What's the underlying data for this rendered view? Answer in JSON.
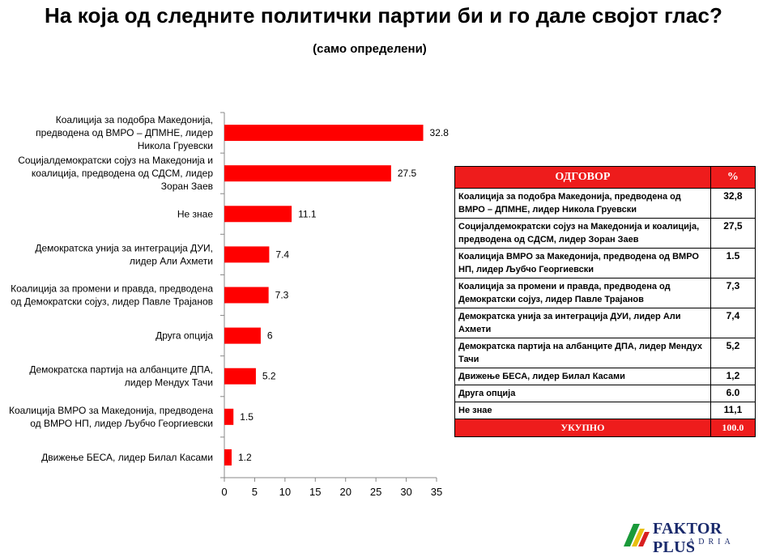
{
  "title": "На која од следните политички партии би и го дале својот глас?",
  "subtitle": "(само определени)",
  "chart_data": {
    "type": "bar",
    "orientation": "horizontal",
    "title": "",
    "xlabel": "",
    "ylabel": "",
    "xlim": [
      0,
      35
    ],
    "xticks": [
      "0",
      "5",
      "10",
      "15",
      "20",
      "25",
      "30",
      "35"
    ],
    "bar_color": "#ff0000",
    "categories": [
      [
        "Коалиција за подобра Македонија,",
        "предводена од ВМРО – ДПМНЕ, лидер",
        "Никола Груевски"
      ],
      [
        "Социјалдемократски сојуз на Македонија и",
        "коалиција, предводена од СДСМ, лидер",
        "Зоран Заев"
      ],
      [
        "Не знае"
      ],
      [
        "Демократска унија за интеграција ДУИ,",
        "лидер Али Ахмети"
      ],
      [
        "Коалиција за промени и правда, предводена",
        "од Демократски сојуз, лидер Павле Трајанов"
      ],
      [
        "Друга опција"
      ],
      [
        "Демократска партија на албанците ДПА,",
        "лидер Мендух Тачи"
      ],
      [
        "Коалиција ВМРО за Македонија, предводена",
        "од ВМРО НП, лидер Љубчо Георгиевски"
      ],
      [
        "Движење БЕСА, лидер Билал Касами"
      ]
    ],
    "values": [
      32.8,
      27.5,
      11.1,
      7.4,
      7.3,
      6,
      5.2,
      1.5,
      1.2
    ],
    "value_labels": [
      "32.8",
      "27.5",
      "11.1",
      "7.4",
      "7.3",
      "6",
      "5.2",
      "1.5",
      "1.2"
    ]
  },
  "table": {
    "headers": [
      "ОДГОВОР",
      "%"
    ],
    "rows": [
      {
        "answer": "Коалиција за подобра Македонија, предводена од ВМРО – ДПМНЕ, лидер Никола Груевски",
        "percent": "32,8"
      },
      {
        "answer": "Социјалдемократски сојуз на Македонија и коалиција, предводена од СДСМ, лидер Зоран Заев",
        "percent": "27,5"
      },
      {
        "answer": "Коалиција ВМРО за Македонија, предводена од ВМРО НП, лидер Љубчо Георгиевски",
        "percent": "1.5"
      },
      {
        "answer": "Коалиција за промени и правда, предводена од Демократски сојуз, лидер Павле Трајанов",
        "percent": "7,3"
      },
      {
        "answer": "Демократска унија за интеграција ДУИ, лидер Али Ахмети",
        "percent": "7,4"
      },
      {
        "answer": "Демократска партија на албанците ДПА, лидер Мендух Тачи",
        "percent": "5,2"
      },
      {
        "answer": "Движење БЕСА, лидер Билал Касами",
        "percent": "1,2"
      },
      {
        "answer": "Друга опција",
        "percent": "6.0"
      },
      {
        "answer": "Не знае",
        "percent": "11,1"
      }
    ],
    "total_label": "УКУПНО",
    "total_value": "100.0"
  },
  "logo": {
    "name": "FAKTOR PLUS",
    "sub": "ADRIA",
    "colors": [
      "#1a9a3a",
      "#e8c010",
      "#d82020"
    ]
  }
}
